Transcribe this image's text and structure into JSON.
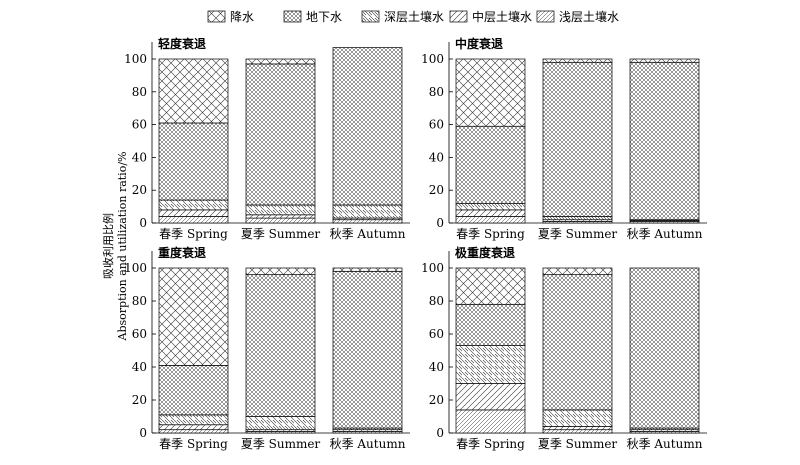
{
  "chart_data": {
    "type": "bar",
    "stacked": true,
    "ylabel": "吸收利用比例",
    "ylabel_en": "Absorption and utilization ratio/%",
    "ylim": [
      0,
      100
    ],
    "yticks": [
      "0",
      "20",
      "40",
      "60",
      "80",
      "100"
    ],
    "categories": [
      "春季 Spring",
      "夏季 Summer",
      "秋季 Autumn"
    ],
    "legend": {
      "placement": "top-center",
      "series_names": [
        "降水",
        "地下水",
        "深层土壤水",
        "中层土壤水",
        "浅层土壤水"
      ]
    },
    "series_order_bottom_to_top": [
      "浅层土壤水",
      "中层土壤水",
      "深层土壤水",
      "地下水",
      "降水"
    ],
    "panels": [
      {
        "title": "轻度衰退",
        "series": [
          {
            "name": "浅层土壤水",
            "values": [
              4,
              3,
              2
            ]
          },
          {
            "name": "中层土壤水",
            "values": [
              4,
              2,
              1
            ]
          },
          {
            "name": "深层土壤水",
            "values": [
              6,
              6,
              8
            ]
          },
          {
            "name": "地下水",
            "values": [
              47,
              86,
              96
            ]
          },
          {
            "name": "降水",
            "values": [
              39,
              3,
              0
            ]
          }
        ]
      },
      {
        "title": "中度衰退",
        "series": [
          {
            "name": "浅层土壤水",
            "values": [
              4,
              1,
              1
            ]
          },
          {
            "name": "中层土壤水",
            "values": [
              4,
              1,
              0.5
            ]
          },
          {
            "name": "深层土壤水",
            "values": [
              4,
              2,
              0.5
            ]
          },
          {
            "name": "地下水",
            "values": [
              47,
              94,
              96
            ]
          },
          {
            "name": "降水",
            "values": [
              41,
              2,
              2
            ]
          }
        ]
      },
      {
        "title": "重度衰退",
        "series": [
          {
            "name": "浅层土壤水",
            "values": [
              2,
              1,
              1
            ]
          },
          {
            "name": "中层土壤水",
            "values": [
              3,
              1,
              1
            ]
          },
          {
            "name": "深层土壤水",
            "values": [
              6,
              8,
              1
            ]
          },
          {
            "name": "地下水",
            "values": [
              30,
              86,
              95
            ]
          },
          {
            "name": "降水",
            "values": [
              59,
              4,
              2
            ]
          }
        ]
      },
      {
        "title": "极重度衰退",
        "series": [
          {
            "name": "浅层土壤水",
            "values": [
              14,
              2,
              1
            ]
          },
          {
            "name": "中层土壤水",
            "values": [
              16,
              2,
              1
            ]
          },
          {
            "name": "深层土壤水",
            "values": [
              23,
              10,
              1
            ]
          },
          {
            "name": "地下水",
            "values": [
              25,
              82,
              97
            ]
          },
          {
            "name": "降水",
            "values": [
              22,
              4,
              0
            ]
          }
        ]
      }
    ]
  }
}
